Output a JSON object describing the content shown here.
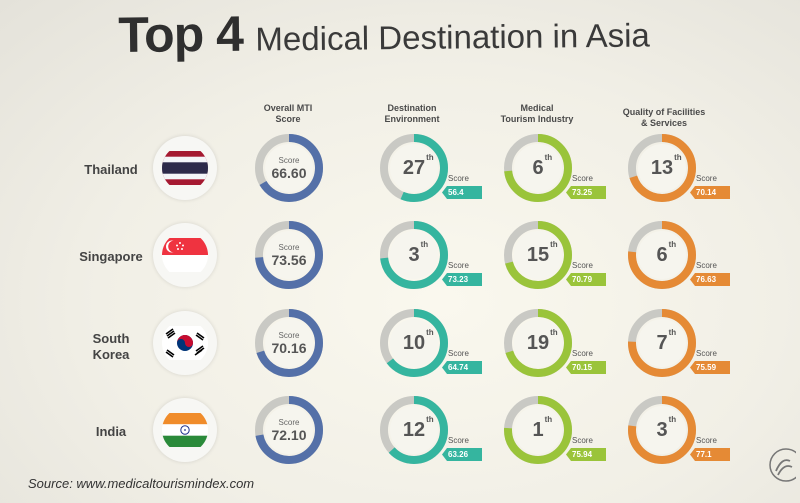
{
  "title": {
    "bold": "Top 4",
    "rest": "Medical Destination in Asia"
  },
  "columns": [
    {
      "line1": "Overall MTI",
      "line2": "Score"
    },
    {
      "line1": "Destination",
      "line2": "Environment"
    },
    {
      "line1": "Medical",
      "line2": "Tourism Industry"
    },
    {
      "line1": "Quality of Facilities",
      "line2": "& Services"
    }
  ],
  "colors": {
    "overall": "#5470a8",
    "destination": "#35b59f",
    "medical": "#9ac43a",
    "quality": "#e58a35",
    "track": "#c9c9c4"
  },
  "score_label": "Score",
  "rows": [
    {
      "country": {
        "line1": "Thailand",
        "line2": ""
      },
      "flag": "thailand-flag",
      "overall": {
        "label": "Score",
        "value": "66.60",
        "fraction": 0.666
      },
      "destination": {
        "rank": "27",
        "suffix": "th",
        "score": "56.4",
        "fraction": 0.564
      },
      "medical": {
        "rank": "6",
        "suffix": "th",
        "score": "73.25",
        "fraction": 0.7325
      },
      "quality": {
        "rank": "13",
        "suffix": "th",
        "score": "70.14",
        "fraction": 0.7014
      }
    },
    {
      "country": {
        "line1": "Singapore",
        "line2": ""
      },
      "flag": "singapore-flag",
      "overall": {
        "label": "Score",
        "value": "73.56",
        "fraction": 0.7356
      },
      "destination": {
        "rank": "3",
        "suffix": "th",
        "score": "73.23",
        "fraction": 0.7323
      },
      "medical": {
        "rank": "15",
        "suffix": "th",
        "score": "70.79",
        "fraction": 0.7079
      },
      "quality": {
        "rank": "6",
        "suffix": "th",
        "score": "76.63",
        "fraction": 0.7663
      }
    },
    {
      "country": {
        "line1": "South",
        "line2": "Korea"
      },
      "flag": "south-korea-flag",
      "overall": {
        "label": "Score",
        "value": "70.16",
        "fraction": 0.7016
      },
      "destination": {
        "rank": "10",
        "suffix": "th",
        "score": "64.74",
        "fraction": 0.6474
      },
      "medical": {
        "rank": "19",
        "suffix": "th",
        "score": "70.15",
        "fraction": 0.7015
      },
      "quality": {
        "rank": "7",
        "suffix": "th",
        "score": "75.59",
        "fraction": 0.7559
      }
    },
    {
      "country": {
        "line1": "India",
        "line2": ""
      },
      "flag": "india-flag",
      "overall": {
        "label": "Score",
        "value": "72.10",
        "fraction": 0.721
      },
      "destination": {
        "rank": "12",
        "suffix": "th",
        "score": "63.26",
        "fraction": 0.6326
      },
      "medical": {
        "rank": "1",
        "suffix": "th",
        "score": "75.94",
        "fraction": 0.7594
      },
      "quality": {
        "rank": "3",
        "suffix": "th",
        "score": "77.1",
        "fraction": 0.771
      }
    }
  ],
  "source": "Source: www.medicaltourismindex.com",
  "logo": "mti-logo-icon"
}
